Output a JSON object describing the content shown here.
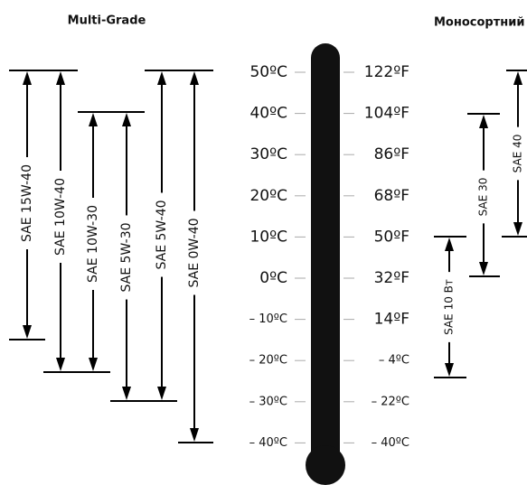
{
  "multi_grade": {
    "title": "Multi-Grade",
    "grades": [
      "SAE 15W-40",
      "SAE 10W-40",
      "SAE 10W-30",
      "SAE 5W-30",
      "SAE 5W-40",
      "SAE 0W-40"
    ]
  },
  "single_grade": {
    "title": "Моносортний",
    "grades": [
      "SAE 40",
      "SAE 30",
      "SAE 10 Вт"
    ]
  },
  "thermometer": {
    "celsius": [
      "50ºC",
      "40ºC",
      "30ºC",
      "20ºC",
      "10ºC",
      "0ºC",
      "– 10ºC",
      "– 20ºC",
      "– 30ºC",
      "– 40ºC"
    ],
    "fahrenheit": [
      "122ºF",
      "104ºF",
      "86ºF",
      "68ºF",
      "50ºF",
      "32ºF",
      "14ºF",
      "– 4ºC",
      "– 22ºC",
      "– 40ºC"
    ]
  }
}
